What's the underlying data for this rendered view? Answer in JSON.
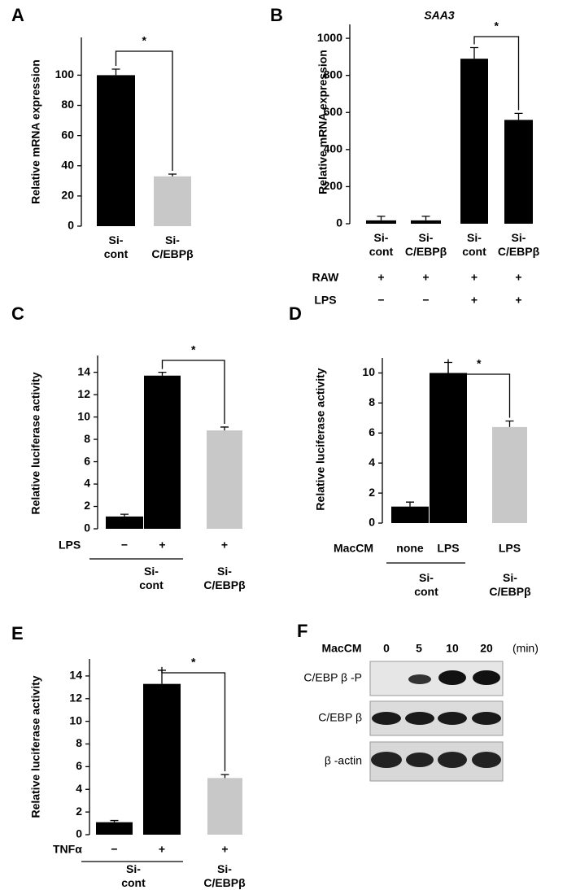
{
  "chart_data": [
    {
      "type": "bar",
      "label": "A",
      "ylabel": "Relative mRNA expression",
      "categories": [
        "Si-\ncont",
        "Si-\nC/EBPβ"
      ],
      "values": [
        100,
        33
      ],
      "errors": [
        4,
        1.5
      ],
      "colors": [
        "#000000",
        "#c8c8c8"
      ],
      "ylim": [
        0,
        125
      ],
      "yticks": [
        0,
        20,
        40,
        60,
        80,
        100
      ],
      "significance": "*"
    },
    {
      "type": "bar",
      "label": "B",
      "title": "SAA3",
      "ylabel": "Relative mRNA expression",
      "categories": [
        "Si-\ncont",
        "Si-\nC/EBPβ",
        "Si-\ncont",
        "Si-\nC/EBPβ"
      ],
      "values": [
        18,
        18,
        890,
        560
      ],
      "errors": [
        22,
        22,
        60,
        35
      ],
      "colors": [
        "#000000",
        "#000000",
        "#000000",
        "#000000"
      ],
      "ylim": [
        0,
        1075
      ],
      "yticks": [
        0,
        200,
        400,
        600,
        800,
        1000
      ],
      "rows": [
        {
          "label": "RAW",
          "values": [
            "+",
            "+",
            "+",
            "+"
          ]
        },
        {
          "label": "LPS",
          "values": [
            "−",
            "−",
            "+",
            "+"
          ]
        }
      ],
      "significance": "*"
    },
    {
      "type": "bar",
      "label": "C",
      "ylabel": "Relative luciferase activity",
      "row_label": "LPS",
      "categories": [
        "−",
        "+",
        "+"
      ],
      "values": [
        1.1,
        13.7,
        8.8
      ],
      "errors": [
        0.2,
        0.3,
        0.3
      ],
      "colors": [
        "#000000",
        "#000000",
        "#c8c8c8"
      ],
      "ylim": [
        0,
        15.5
      ],
      "yticks": [
        0,
        2,
        4,
        6,
        8,
        10,
        12,
        14
      ],
      "groups": [
        "Si-\ncont",
        "Si-\nC/EBPβ"
      ],
      "significance": "*"
    },
    {
      "type": "bar",
      "label": "D",
      "ylabel": "Relative luciferase activity",
      "row_label": "MacCM",
      "categories": [
        "none",
        "LPS",
        "LPS"
      ],
      "values": [
        1.1,
        10,
        6.4
      ],
      "errors": [
        0.3,
        0.7,
        0.4
      ],
      "colors": [
        "#000000",
        "#000000",
        "#c8c8c8"
      ],
      "ylim": [
        0,
        11
      ],
      "yticks": [
        0,
        2,
        4,
        6,
        8,
        10
      ],
      "groups": [
        "Si-\ncont",
        "Si-\nC/EBPβ"
      ],
      "significance": "*"
    },
    {
      "type": "bar",
      "label": "E",
      "ylabel": "Relative luciferase activity",
      "row_label": "TNFα",
      "categories": [
        "−",
        "+",
        "+"
      ],
      "values": [
        1.1,
        13.3,
        5.0
      ],
      "errors": [
        0.15,
        1.2,
        0.3
      ],
      "colors": [
        "#000000",
        "#000000",
        "#c8c8c8"
      ],
      "ylim": [
        0,
        15.5
      ],
      "yticks": [
        0,
        2,
        4,
        6,
        8,
        10,
        12,
        14
      ],
      "groups": [
        "Si-\ncont",
        "Si-\nC/EBPβ"
      ],
      "significance": "*"
    }
  ],
  "blot": {
    "label": "F",
    "condition": "MacCM",
    "times": [
      "0",
      "5",
      "10",
      "20"
    ],
    "unit": "(min)",
    "rows": [
      "C/EBP β -P",
      "C/EBP β",
      "β -actin"
    ]
  }
}
